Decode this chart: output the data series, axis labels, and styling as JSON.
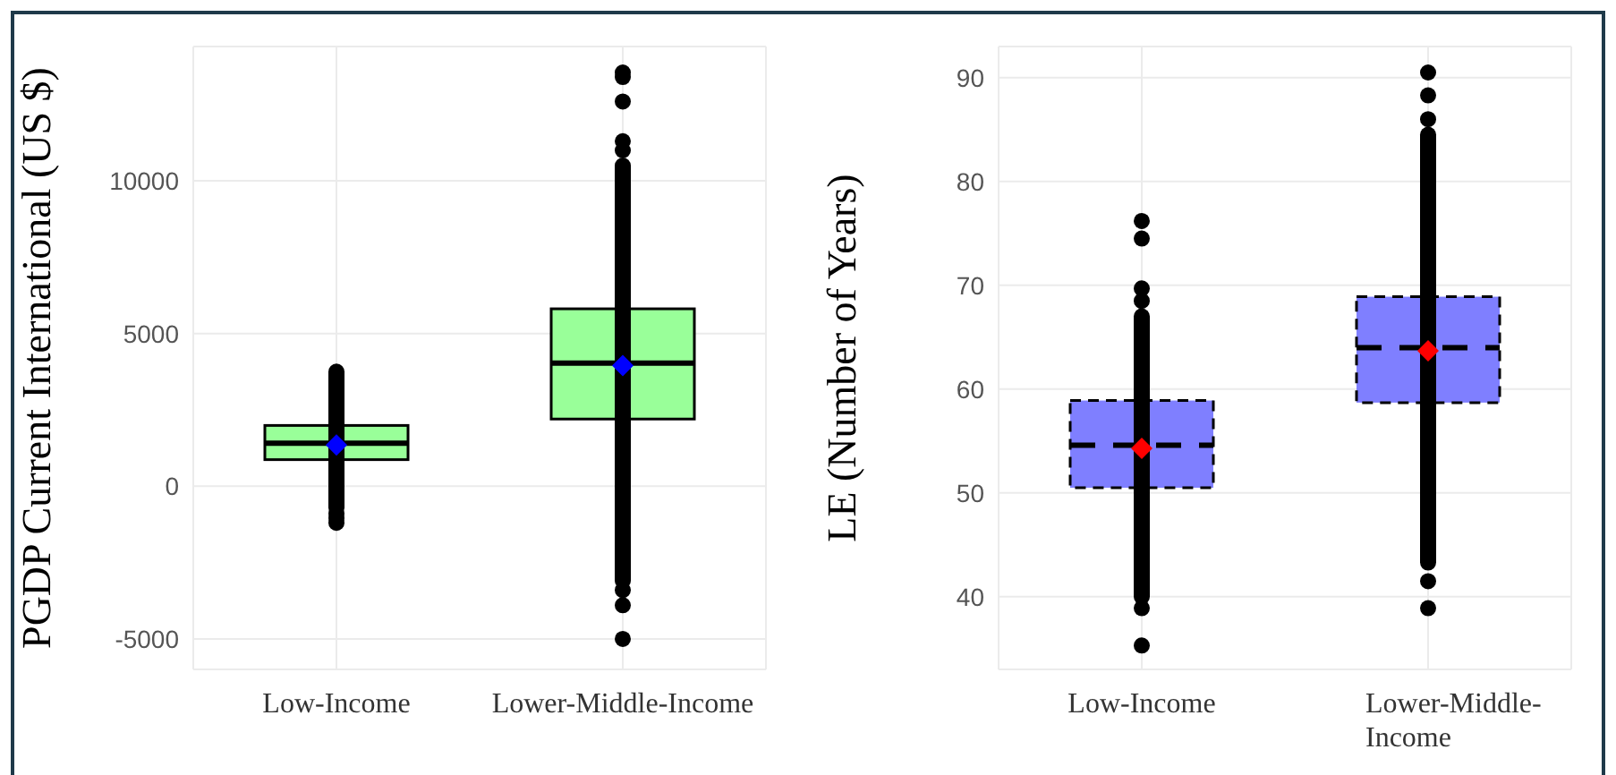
{
  "chart_data": [
    {
      "type": "box",
      "ylabel": "PGDP Current International (US $)",
      "categories": [
        "Low-Income",
        "Lower-Middle-Income"
      ],
      "ylim": [
        -6000,
        14400
      ],
      "yticks": [
        -5000,
        0,
        5000,
        10000
      ],
      "grid": true,
      "series": [
        {
          "color": "#99ff99",
          "line_style": "solid",
          "boxes": [
            {
              "low": -700,
              "q1": 870,
              "median": 1410,
              "q3": 1990,
              "high": 3750,
              "mean": 1350,
              "outliers": [
                -900,
                -1050,
                -1200
              ]
            },
            {
              "low": -3100,
              "q1": 2200,
              "median": 4030,
              "q3": 5810,
              "high": 10500,
              "mean": 3950,
              "outliers": [
                11000,
                11300,
                12600,
                13400,
                13550,
                -3400,
                -3900,
                -5000
              ]
            }
          ]
        }
      ]
    },
    {
      "type": "box",
      "ylabel": "LE (Number of Years)",
      "categories": [
        "Low-Income",
        "Lower-Middle-Income"
      ],
      "ylim": [
        33,
        93
      ],
      "yticks": [
        40,
        50,
        60,
        70,
        80,
        90
      ],
      "grid": true,
      "series": [
        {
          "color": "#7f7fff",
          "line_style": "dashed",
          "boxes": [
            {
              "low": 40,
              "q1": 50.5,
              "median": 54.6,
              "q3": 58.9,
              "high": 67,
              "mean": 54.3,
              "outliers": [
                68.5,
                69.7,
                74.5,
                76.2,
                38.9,
                35.3
              ]
            },
            {
              "low": 43.3,
              "q1": 58.7,
              "median": 64,
              "q3": 68.9,
              "high": 84.5,
              "mean": 63.7,
              "outliers": [
                86,
                88.3,
                90.5,
                41.5,
                38.9
              ]
            }
          ]
        }
      ]
    }
  ]
}
